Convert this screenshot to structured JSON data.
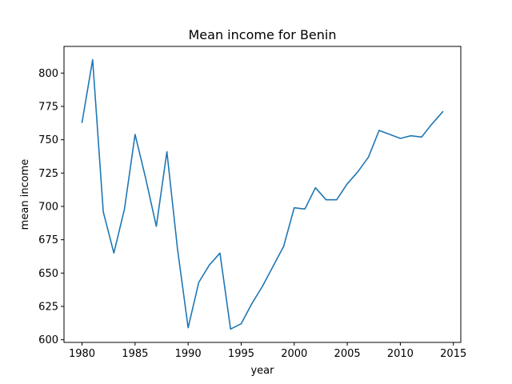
{
  "chart_data": {
    "type": "line",
    "title": "Mean income for Benin",
    "xlabel": "year",
    "ylabel": "mean income",
    "xlim": [
      1978.3,
      2015.7
    ],
    "ylim": [
      598,
      820
    ],
    "xticks": [
      1980,
      1985,
      1990,
      1995,
      2000,
      2005,
      2010,
      2015
    ],
    "yticks": [
      600,
      625,
      650,
      675,
      700,
      725,
      750,
      775,
      800
    ],
    "grid": false,
    "series": [
      {
        "color": "#1f77b4",
        "x": [
          1980,
          1981,
          1982,
          1983,
          1984,
          1985,
          1986,
          1987,
          1988,
          1989,
          1990,
          1991,
          1992,
          1993,
          1994,
          1995,
          1996,
          1997,
          1998,
          1999,
          2000,
          2001,
          2002,
          2003,
          2004,
          2005,
          2006,
          2007,
          2008,
          2009,
          2010,
          2011,
          2012,
          2013,
          2014
        ],
        "y": [
          763,
          810,
          696,
          665,
          698,
          754,
          721,
          685,
          741,
          668,
          609,
          643,
          656,
          665,
          608,
          612,
          627,
          640,
          655,
          670,
          699,
          698,
          714,
          705,
          705,
          717,
          726,
          737,
          757,
          754,
          751,
          753,
          752,
          762,
          771
        ]
      }
    ]
  }
}
